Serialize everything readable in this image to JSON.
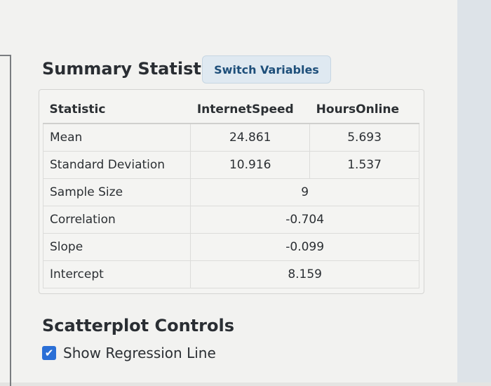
{
  "summary": {
    "title": "Summary Statistics",
    "switch_label": "Switch Variables"
  },
  "table": {
    "headers": [
      "Statistic",
      "InternetSpeed",
      "HoursOnline"
    ],
    "rows": [
      {
        "label": "Mean",
        "internet": "24.861",
        "hours": "5.693"
      },
      {
        "label": "Standard Deviation",
        "internet": "10.916",
        "hours": "1.537"
      }
    ],
    "shared_rows": [
      {
        "label": "Sample Size",
        "value": "9"
      },
      {
        "label": "Correlation",
        "value": "-0.704"
      },
      {
        "label": "Slope",
        "value": "-0.099"
      },
      {
        "label": "Intercept",
        "value": "8.159"
      }
    ]
  },
  "scatter": {
    "title": "Scatterplot Controls",
    "regression_label": "Show Regression Line",
    "regression_checked": true,
    "check_glyph": "✔"
  },
  "colors": {
    "accent": "#2a6fd6",
    "button_bg": "#dfe9f1",
    "button_text": "#1e4f7a"
  }
}
